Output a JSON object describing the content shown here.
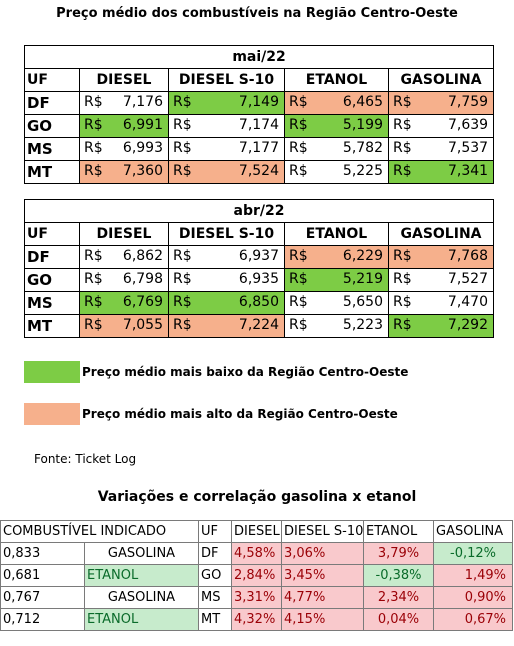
{
  "title": "Preço médio dos combustíveis na Região Centro-Oeste",
  "currency": "R$",
  "headers": {
    "uf": "UF",
    "diesel": "DIESEL",
    "diesel_s10": "DIESEL S-10",
    "etanol": "ETANOL",
    "gasolina": "GASOLINA"
  },
  "colors": {
    "lowest": "#7dcc45",
    "highest": "#f6b08c",
    "positive_variation": "#f9c9cc",
    "negative_variation": "#c7ebcc"
  },
  "tables": [
    {
      "month": "mai/22",
      "rows": [
        {
          "uf": "DF",
          "diesel": "7,176",
          "diesel_s10": "7,149",
          "etanol": "6,465",
          "gasolina": "7,759"
        },
        {
          "uf": "GO",
          "diesel": "6,991",
          "diesel_s10": "7,174",
          "etanol": "5,199",
          "gasolina": "7,639"
        },
        {
          "uf": "MS",
          "diesel": "6,993",
          "diesel_s10": "7,177",
          "etanol": "5,782",
          "gasolina": "7,537"
        },
        {
          "uf": "MT",
          "diesel": "7,360",
          "diesel_s10": "7,524",
          "etanol": "5,225",
          "gasolina": "7,341"
        }
      ]
    },
    {
      "month": "abr/22",
      "rows": [
        {
          "uf": "DF",
          "diesel": "6,862",
          "diesel_s10": "6,937",
          "etanol": "6,229",
          "gasolina": "7,768"
        },
        {
          "uf": "GO",
          "diesel": "6,798",
          "diesel_s10": "6,935",
          "etanol": "5,219",
          "gasolina": "7,527"
        },
        {
          "uf": "MS",
          "diesel": "6,769",
          "diesel_s10": "6,850",
          "etanol": "5,650",
          "gasolina": "7,470"
        },
        {
          "uf": "MT",
          "diesel": "7,055",
          "diesel_s10": "7,224",
          "etanol": "5,223",
          "gasolina": "7,292"
        }
      ]
    }
  ],
  "legend": {
    "lowest": "Preço médio mais baixo da Região Centro-Oeste",
    "highest": "Preço médio mais alto da Região Centro-Oeste"
  },
  "source": "Fonte: Ticket Log",
  "correlation": {
    "title": "Variações e correlação gasolina x etanol",
    "headers": {
      "indicated": "COMBUSTÍVEL INDICADO",
      "uf": "UF",
      "diesel": "DIESEL",
      "diesel_s10": "DIESEL S-10",
      "etanol": "ETANOL",
      "gasolina": "GASOLINA"
    },
    "rows": [
      {
        "ratio": "0,833",
        "fuel": "GASOLINA",
        "uf": "DF",
        "diesel": "4,58%",
        "diesel_s10": "3,06%",
        "etanol": "3,79%",
        "gasolina": "-0,12%"
      },
      {
        "ratio": "0,681",
        "fuel": "ETANOL",
        "uf": "GO",
        "diesel": "2,84%",
        "diesel_s10": "3,45%",
        "etanol": "-0,38%",
        "gasolina": "1,49%"
      },
      {
        "ratio": "0,767",
        "fuel": "GASOLINA",
        "uf": "MS",
        "diesel": "3,31%",
        "diesel_s10": "4,77%",
        "etanol": "2,34%",
        "gasolina": "0,90%"
      },
      {
        "ratio": "0,712",
        "fuel": "ETANOL",
        "uf": "MT",
        "diesel": "4,32%",
        "diesel_s10": "4,15%",
        "etanol": "0,04%",
        "gasolina": "0,67%"
      }
    ]
  }
}
